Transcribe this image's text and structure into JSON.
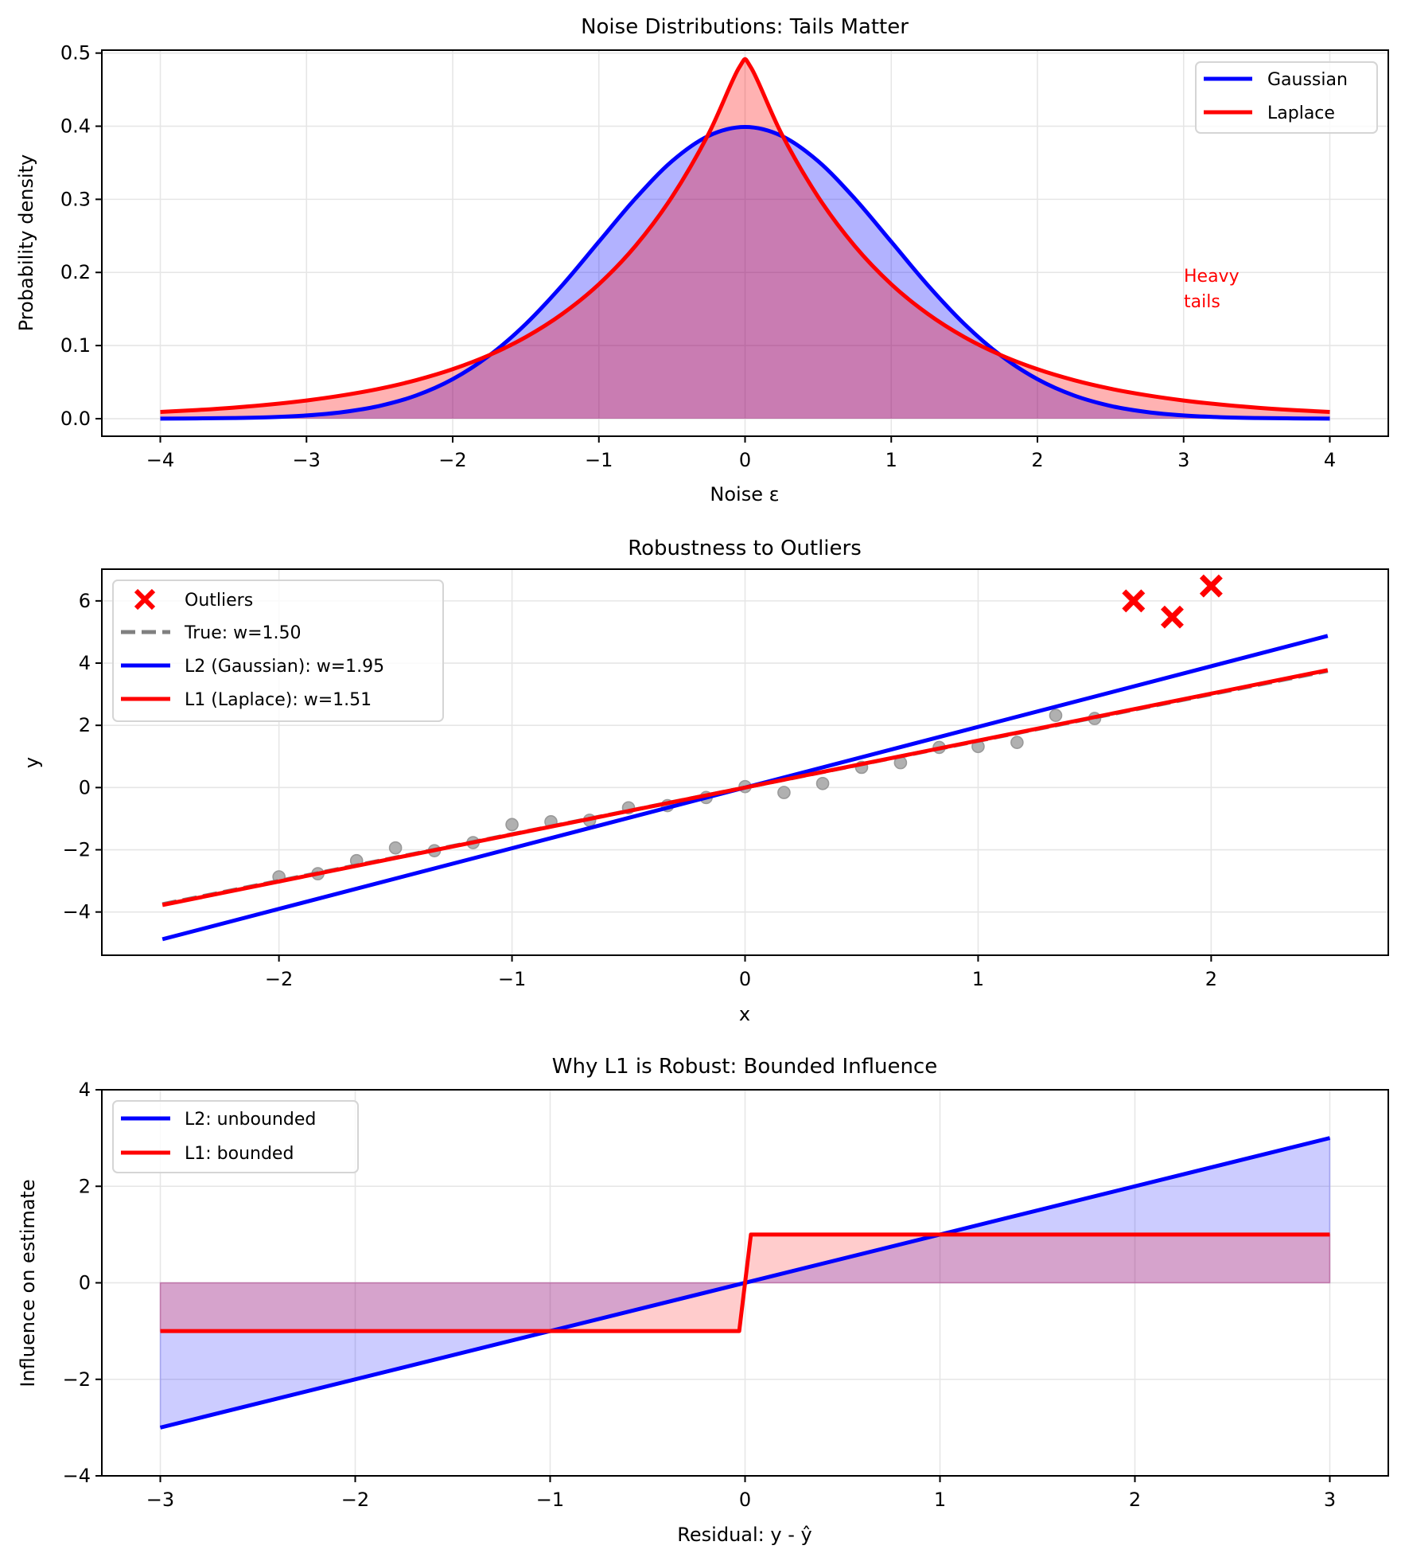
{
  "figure": {
    "background": "#ffffff"
  },
  "chart_data": [
    {
      "type": "line",
      "title": "Noise Distributions: Tails Matter",
      "xlabel": "Noise ε",
      "ylabel": "Probability density",
      "xlim": [
        -4.4,
        4.4
      ],
      "ylim": [
        -0.024,
        0.504
      ],
      "xticks": [
        -4,
        -3,
        -2,
        -1,
        0,
        1,
        2,
        3,
        4
      ],
      "xtick_labels": [
        "−4",
        "−3",
        "−2",
        "−1",
        "0",
        "1",
        "2",
        "3",
        "4"
      ],
      "yticks": [
        0.0,
        0.1,
        0.2,
        0.3,
        0.4,
        0.5
      ],
      "ytick_labels": [
        "0.0",
        "0.1",
        "0.2",
        "0.3",
        "0.4",
        "0.5"
      ],
      "grid": true,
      "legend": {
        "placement": "top-right",
        "entries": [
          "Gaussian",
          "Laplace"
        ]
      },
      "series": [
        {
          "name": "Gaussian",
          "color": "#0000ff",
          "fill": true,
          "fill_opacity": 0.3,
          "x": [
            -4,
            -3.75,
            -3.5,
            -3.25,
            -3,
            -2.75,
            -2.5,
            -2.25,
            -2,
            -1.75,
            -1.5,
            -1.25,
            -1,
            -0.75,
            -0.5,
            -0.25,
            0,
            0.25,
            0.5,
            0.75,
            1,
            1.25,
            1.5,
            1.75,
            2,
            2.25,
            2.5,
            2.75,
            3,
            3.25,
            3.5,
            3.75,
            4
          ],
          "y": [
            0.0001,
            0.0004,
            0.0009,
            0.002,
            0.0044,
            0.0091,
            0.0175,
            0.0317,
            0.054,
            0.0863,
            0.1295,
            0.1826,
            0.242,
            0.3011,
            0.3521,
            0.3867,
            0.3989,
            0.3867,
            0.3521,
            0.3011,
            0.242,
            0.1826,
            0.1295,
            0.0863,
            0.054,
            0.0317,
            0.0175,
            0.0091,
            0.0044,
            0.002,
            0.0009,
            0.0004,
            0.0001
          ]
        },
        {
          "name": "Laplace",
          "color": "#ff0000",
          "fill": true,
          "fill_opacity": 0.3,
          "x": [
            -4,
            -3.75,
            -3.5,
            -3.25,
            -3,
            -2.75,
            -2.5,
            -2.25,
            -2,
            -1.75,
            -1.5,
            -1.25,
            -1,
            -0.75,
            -0.5,
            -0.25,
            -0.04,
            0.04,
            0.25,
            0.5,
            0.75,
            1,
            1.25,
            1.5,
            1.75,
            2,
            2.25,
            2.5,
            2.75,
            3,
            3.25,
            3.5,
            3.75,
            4
          ],
          "y": [
            0.0092,
            0.0118,
            0.0151,
            0.0194,
            0.0249,
            0.032,
            0.041,
            0.0527,
            0.0677,
            0.0869,
            0.1116,
            0.1433,
            0.1839,
            0.2362,
            0.3033,
            0.3894,
            0.4804,
            0.4804,
            0.3894,
            0.3033,
            0.2362,
            0.1839,
            0.1433,
            0.1116,
            0.0869,
            0.0677,
            0.0527,
            0.041,
            0.032,
            0.0249,
            0.0194,
            0.0151,
            0.0118,
            0.0092
          ]
        }
      ],
      "annotations": [
        {
          "text_lines": [
            "Heavy",
            "tails"
          ],
          "x": 3.0,
          "y": 0.2,
          "color": "#ff0000"
        }
      ]
    },
    {
      "type": "scatter",
      "title": "Robustness to Outliers",
      "xlabel": "x",
      "ylabel": "y",
      "xlim": [
        -2.76,
        2.76
      ],
      "ylim": [
        -5.39,
        7.02
      ],
      "xticks": [
        -2,
        -1,
        0,
        1,
        2
      ],
      "xtick_labels": [
        "−2",
        "−1",
        "0",
        "1",
        "2"
      ],
      "yticks": [
        -4,
        -2,
        0,
        2,
        4,
        6
      ],
      "ytick_labels": [
        "−4",
        "−2",
        "0",
        "2",
        "4",
        "6"
      ],
      "grid": true,
      "legend": {
        "placement": "top-left",
        "entries": [
          "Outliers",
          "True: w=1.50",
          "L2 (Gaussian): w=1.95",
          "L1 (Laplace): w=1.51"
        ]
      },
      "points": {
        "name": "Data",
        "color": "#a0a0a0",
        "x": [
          -2,
          -1.833,
          -1.667,
          -1.5,
          -1.333,
          -1.167,
          -1,
          -0.833,
          -0.667,
          -0.5,
          -0.333,
          -0.167,
          0,
          0.167,
          0.333,
          0.5,
          0.667,
          0.833,
          1,
          1.167,
          1.333,
          1.5
        ],
        "y": [
          -2.87,
          -2.77,
          -2.35,
          -1.94,
          -2.03,
          -1.77,
          -1.19,
          -1.1,
          -1.05,
          -0.65,
          -0.58,
          -0.32,
          0.03,
          -0.16,
          0.13,
          0.65,
          0.8,
          1.29,
          1.32,
          1.45,
          2.32,
          2.22
        ]
      },
      "outliers": {
        "name": "Outliers",
        "color": "#ff0000",
        "marker": "x",
        "x": [
          1.667,
          1.833,
          2.0
        ],
        "y": [
          6.0,
          5.48,
          6.48
        ]
      },
      "lines": [
        {
          "name": "True: w=1.50",
          "slope": 1.5,
          "x_range": [
            -2.5,
            2.5
          ],
          "color": "#808080",
          "dashed": true
        },
        {
          "name": "L2 (Gaussian): w=1.95",
          "slope": 1.95,
          "x_range": [
            -2.5,
            2.5
          ],
          "color": "#0000ff",
          "dashed": false
        },
        {
          "name": "L1 (Laplace): w=1.51",
          "slope": 1.51,
          "x_range": [
            -2.5,
            2.5
          ],
          "color": "#ff0000",
          "dashed": false
        }
      ]
    },
    {
      "type": "line",
      "title": "Why L1 is Robust: Bounded Influence",
      "xlabel": "Residual: y - ŷ",
      "ylabel": "Influence on estimate",
      "xlim": [
        -3.3,
        3.3
      ],
      "ylim": [
        -4,
        4
      ],
      "xticks": [
        -3,
        -2,
        -1,
        0,
        1,
        2,
        3
      ],
      "xtick_labels": [
        "−3",
        "−2",
        "−1",
        "0",
        "1",
        "2",
        "3"
      ],
      "yticks": [
        -4,
        -2,
        0,
        2,
        4
      ],
      "ytick_labels": [
        "−4",
        "−2",
        "0",
        "2",
        "4"
      ],
      "grid": true,
      "legend": {
        "placement": "top-left",
        "entries": [
          "L2: unbounded",
          "L1: bounded"
        ]
      },
      "series": [
        {
          "name": "L2: unbounded",
          "color": "#0000ff",
          "fill": true,
          "fill_opacity": 0.2,
          "x": [
            -3,
            3
          ],
          "y": [
            -3,
            3
          ]
        },
        {
          "name": "L1: bounded",
          "color": "#ff0000",
          "fill": true,
          "fill_opacity": 0.2,
          "x": [
            -3,
            -0.03,
            0.03,
            3
          ],
          "y": [
            -1,
            -1,
            1,
            1
          ]
        }
      ]
    }
  ]
}
